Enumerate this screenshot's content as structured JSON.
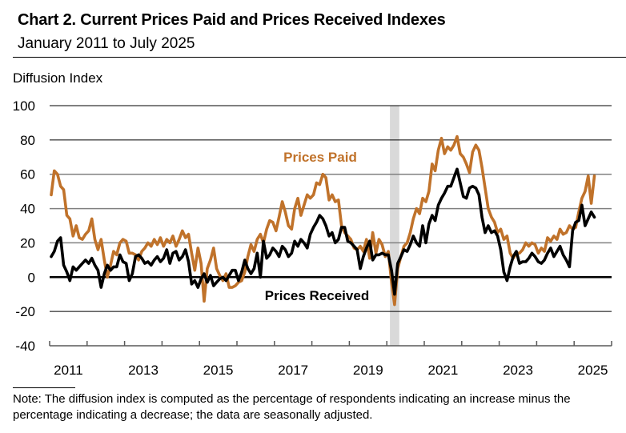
{
  "header": {
    "title": "Chart 2. Current Prices Paid and Prices Received Indexes",
    "subtitle": "January 2011 to July 2025",
    "y_axis_label": "Diffusion Index"
  },
  "note": "Note: The diffusion index is computed as the percentage of respondents indicating an increase minus the percentage indicating a decrease; the data are seasonally adjusted.",
  "colors": {
    "prices_paid": "#C0722A",
    "prices_received": "#000000",
    "recession": "#D9D9D9",
    "grid": "#808080"
  },
  "chart_data": {
    "type": "line",
    "title": "Chart 2. Current Prices Paid and Prices Received Indexes",
    "subtitle": "January 2011 to July 2025",
    "xlabel": "",
    "ylabel": "Diffusion Index",
    "ylim": [
      -40,
      100
    ],
    "yticks": [
      100,
      80,
      60,
      40,
      20,
      0,
      -20,
      -40
    ],
    "ytick_labels": [
      "100",
      "80",
      "60",
      "40",
      "20",
      "0",
      "-20",
      "-40"
    ],
    "xlim": [
      "2011-01",
      "2025-12"
    ],
    "xtick_labels": [
      "2011",
      "2013",
      "2015",
      "2017",
      "2019",
      "2021",
      "2023",
      "2025"
    ],
    "x_start": "2011-01",
    "frequency": "monthly",
    "grid": true,
    "legend": "inline labels",
    "recession_shading": {
      "start": "2020-02",
      "end": "2020-04"
    },
    "series": [
      {
        "name": "Prices Paid",
        "label_position": "above-center",
        "values": [
          48,
          62,
          60,
          53,
          51,
          36,
          34,
          24,
          30,
          23,
          22,
          25,
          27,
          34,
          22,
          16,
          22,
          10,
          0,
          7,
          15,
          13,
          20,
          22,
          21,
          14,
          14,
          13,
          10,
          15,
          17,
          20,
          18,
          22,
          19,
          23,
          18,
          22,
          20,
          24,
          18,
          22,
          27,
          23,
          25,
          14,
          4,
          17,
          8,
          -14,
          5,
          10,
          17,
          5,
          1,
          -2,
          2,
          -6,
          -6,
          -5,
          -3,
          -2,
          3,
          12,
          19,
          15,
          22,
          25,
          20,
          28,
          33,
          32,
          27,
          35,
          44,
          38,
          30,
          28,
          40,
          46,
          36,
          42,
          48,
          46,
          48,
          55,
          54,
          60,
          58,
          45,
          48,
          44,
          45,
          30,
          26,
          24,
          22,
          17,
          16,
          18,
          15,
          22,
          11,
          26,
          14,
          22,
          19,
          12,
          15,
          -3,
          -16,
          5,
          12,
          18,
          20,
          26,
          34,
          40,
          37,
          46,
          44,
          50,
          66,
          62,
          74,
          81,
          72,
          76,
          74,
          77,
          82,
          72,
          70,
          66,
          61,
          73,
          77,
          74,
          64,
          52,
          40,
          35,
          32,
          26,
          28,
          22,
          24,
          14,
          11,
          14,
          14,
          16,
          20,
          18,
          20,
          19,
          14,
          17,
          15,
          23,
          21,
          24,
          22,
          28,
          25,
          26,
          30,
          28,
          29,
          38,
          46,
          50,
          59,
          43,
          59
        ]
      },
      {
        "name": "Prices Received",
        "label_position": "below-center",
        "values": [
          12,
          15,
          21,
          23,
          7,
          3,
          -2,
          6,
          4,
          6,
          8,
          10,
          8,
          11,
          7,
          4,
          -6,
          2,
          7,
          4,
          6,
          6,
          13,
          9,
          8,
          -2,
          2,
          12,
          13,
          11,
          8,
          9,
          7,
          10,
          12,
          9,
          11,
          16,
          8,
          14,
          15,
          10,
          12,
          16,
          9,
          -4,
          -2,
          -6,
          -1,
          2,
          -3,
          1,
          -5,
          -3,
          -1,
          0,
          -2,
          1,
          4,
          4,
          -2,
          3,
          10,
          5,
          2,
          5,
          14,
          0,
          21,
          11,
          13,
          17,
          15,
          12,
          18,
          16,
          12,
          14,
          21,
          18,
          22,
          20,
          17,
          25,
          29,
          32,
          36,
          34,
          30,
          24,
          26,
          20,
          22,
          29,
          29,
          21,
          20,
          18,
          16,
          5,
          12,
          17,
          21,
          10,
          13,
          13,
          14,
          13,
          13,
          4,
          -10,
          8,
          12,
          16,
          15,
          19,
          24,
          20,
          18,
          30,
          20,
          31,
          36,
          33,
          42,
          46,
          49,
          53,
          53,
          58,
          63,
          55,
          47,
          46,
          52,
          53,
          52,
          48,
          35,
          26,
          30,
          26,
          27,
          24,
          16,
          3,
          -2,
          6,
          12,
          15,
          8,
          9,
          9,
          11,
          14,
          12,
          9,
          8,
          10,
          14,
          17,
          12,
          15,
          18,
          13,
          10,
          6,
          27,
          32,
          33,
          42,
          30,
          34,
          38,
          35
        ]
      }
    ]
  }
}
